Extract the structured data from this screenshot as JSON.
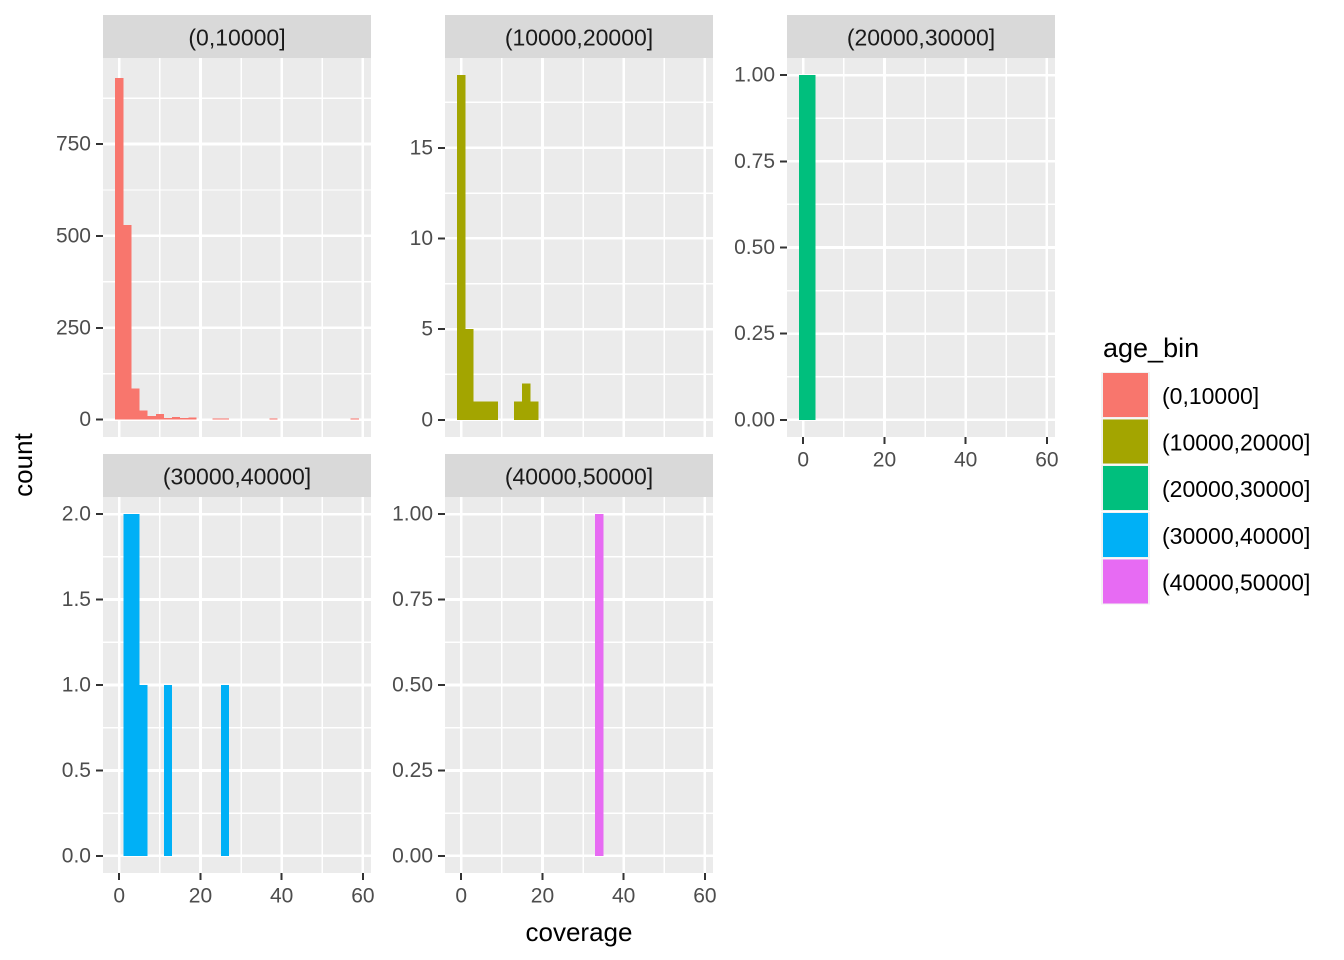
{
  "style": {
    "background": "#FFFFFF",
    "panel_background": "#EBEBEB",
    "strip_background": "#D9D9D9",
    "grid_color": "#FFFFFF",
    "tick_color": "#333333",
    "tick_label_color": "#4D4D4D",
    "strip_text_color": "#1A1A1A",
    "title_color": "#000000",
    "legend_key_background": "#F2F2F2"
  },
  "chart_data": {
    "type": "bar",
    "subtype": "faceted_histogram",
    "title": "",
    "xlabel": "coverage",
    "ylabel": "count",
    "facet_variable": "age_bin",
    "grid": true,
    "legend_position": "right",
    "binwidth": 2,
    "xlim": [
      -4,
      62
    ],
    "x_tick_values": [
      0,
      20,
      40,
      60
    ],
    "x_ticks": [
      "0",
      "20",
      "40",
      "60"
    ],
    "x_minor_values": [
      10,
      30,
      50
    ],
    "facets": [
      {
        "label": "(0,10000]",
        "color": "#F8766D",
        "row": 0,
        "col": 0,
        "show_x_axis": false,
        "y_tick_values": [
          0,
          250,
          500,
          750
        ],
        "y_tick_labels": [
          "0",
          "250",
          "500",
          "750"
        ],
        "ylim": [
          -47,
          984
        ],
        "bins": [
          {
            "x0": -1,
            "x1": 1,
            "count": 930
          },
          {
            "x0": 1,
            "x1": 3,
            "count": 530
          },
          {
            "x0": 3,
            "x1": 5,
            "count": 85
          },
          {
            "x0": 5,
            "x1": 7,
            "count": 25
          },
          {
            "x0": 7,
            "x1": 9,
            "count": 10
          },
          {
            "x0": 9,
            "x1": 11,
            "count": 15
          },
          {
            "x0": 11,
            "x1": 13,
            "count": 5
          },
          {
            "x0": 13,
            "x1": 15,
            "count": 8
          },
          {
            "x0": 15,
            "x1": 17,
            "count": 5
          },
          {
            "x0": 17,
            "x1": 19,
            "count": 6
          },
          {
            "x0": 23,
            "x1": 25,
            "count": 3
          },
          {
            "x0": 25,
            "x1": 27,
            "count": 4
          },
          {
            "x0": 37,
            "x1": 39,
            "count": 4
          },
          {
            "x0": 57,
            "x1": 59,
            "count": 4
          }
        ]
      },
      {
        "label": "(10000,20000]",
        "color": "#A3A500",
        "row": 0,
        "col": 1,
        "show_x_axis": false,
        "y_tick_values": [
          0,
          5,
          10,
          15
        ],
        "y_tick_labels": [
          "0",
          "5",
          "10",
          "15"
        ],
        "ylim": [
          -0.95,
          19.95
        ],
        "bins": [
          {
            "x0": -1,
            "x1": 1,
            "count": 19
          },
          {
            "x0": 1,
            "x1": 3,
            "count": 5
          },
          {
            "x0": 3,
            "x1": 5,
            "count": 1
          },
          {
            "x0": 5,
            "x1": 7,
            "count": 1
          },
          {
            "x0": 7,
            "x1": 9,
            "count": 1
          },
          {
            "x0": 13,
            "x1": 15,
            "count": 1
          },
          {
            "x0": 15,
            "x1": 17,
            "count": 2
          },
          {
            "x0": 17,
            "x1": 19,
            "count": 1
          }
        ]
      },
      {
        "label": "(20000,30000]",
        "color": "#00BF7D",
        "row": 0,
        "col": 2,
        "show_x_axis": true,
        "y_tick_values": [
          0,
          0.25,
          0.5,
          0.75,
          1
        ],
        "y_tick_labels": [
          "0.00",
          "0.25",
          "0.50",
          "0.75",
          "1.00"
        ],
        "ylim": [
          -0.05,
          1.05
        ],
        "bins": [
          {
            "x0": -1,
            "x1": 1,
            "count": 1
          },
          {
            "x0": 1,
            "x1": 3,
            "count": 1
          }
        ]
      },
      {
        "label": "(30000,40000]",
        "color": "#00B0F6",
        "row": 1,
        "col": 0,
        "show_x_axis": true,
        "y_tick_values": [
          0,
          0.5,
          1,
          1.5,
          2
        ],
        "y_tick_labels": [
          "0.0",
          "0.5",
          "1.0",
          "1.5",
          "2.0"
        ],
        "ylim": [
          -0.1,
          2.1
        ],
        "bins": [
          {
            "x0": 1,
            "x1": 3,
            "count": 2
          },
          {
            "x0": 3,
            "x1": 5,
            "count": 2
          },
          {
            "x0": 5,
            "x1": 7,
            "count": 1
          },
          {
            "x0": 11,
            "x1": 13,
            "count": 1
          },
          {
            "x0": 25,
            "x1": 27,
            "count": 1
          }
        ]
      },
      {
        "label": "(40000,50000]",
        "color": "#E76BF3",
        "row": 1,
        "col": 1,
        "show_x_axis": true,
        "y_tick_values": [
          0,
          0.25,
          0.5,
          0.75,
          1
        ],
        "y_tick_labels": [
          "0.00",
          "0.25",
          "0.50",
          "0.75",
          "1.00"
        ],
        "ylim": [
          -0.05,
          1.05
        ],
        "bins": [
          {
            "x0": 33,
            "x1": 35,
            "count": 1
          }
        ]
      }
    ],
    "legend": {
      "title": "age_bin",
      "items": [
        {
          "label": "(0,10000]",
          "color": "#F8766D"
        },
        {
          "label": "(10000,20000]",
          "color": "#A3A500"
        },
        {
          "label": "(20000,30000]",
          "color": "#00BF7D"
        },
        {
          "label": "(30000,40000]",
          "color": "#00B0F6"
        },
        {
          "label": "(40000,50000]",
          "color": "#E76BF3"
        }
      ]
    }
  }
}
